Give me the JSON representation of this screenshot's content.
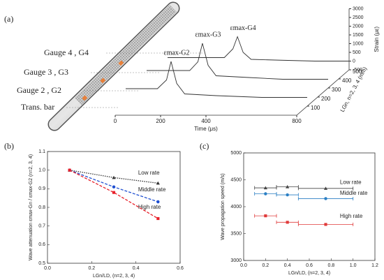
{
  "chart_data": [
    {
      "type": "waterfall3d",
      "panel": "(a)",
      "gauge_labels": [
        "Gauge 4 , G4",
        "Gauge 3 , G3",
        "Gauge 2 , G2",
        "Trans. bar"
      ],
      "x_label": "Time (μs)",
      "y_label": "Strain (με)",
      "z_label": "LGn, n=2, 3, 4 (mm)",
      "xlim": [
        0,
        800
      ],
      "xticks": [
        0,
        200,
        400,
        800
      ],
      "ylim": [
        -500,
        3000
      ],
      "yticks": [
        3000,
        2500,
        2000,
        1500,
        1000,
        500,
        0,
        -500
      ],
      "zlim": [
        0,
        500
      ],
      "zticks": [
        100,
        200,
        300,
        400,
        500
      ],
      "series": [
        {
          "name": "εmax-G2",
          "color": "#333333",
          "depth": 100,
          "x": [
            0,
            60,
            140,
            180,
            200,
            225,
            260,
            400,
            600,
            800
          ],
          "values": [
            500,
            500,
            500,
            1000,
            2060,
            800,
            200,
            100,
            0,
            0
          ]
        },
        {
          "name": "εmax-G3",
          "color": "#333333",
          "depth": 300,
          "x": [
            0,
            60,
            190,
            226,
            246,
            271,
            306,
            450,
            600,
            800
          ],
          "values": [
            500,
            500,
            500,
            1000,
            2060,
            800,
            200,
            100,
            0,
            0
          ]
        },
        {
          "name": "εmax-G4",
          "color": "#333333",
          "depth": 500,
          "x": [
            0,
            60,
            250,
            288,
            308,
            333,
            368,
            500,
            650,
            800
          ],
          "values": [
            200,
            200,
            200,
            700,
            1400,
            500,
            100,
            50,
            0,
            0
          ]
        }
      ]
    },
    {
      "type": "line",
      "panel": "(b)",
      "x_label": "LGn/LD, (n=2, 3, 4)",
      "y_label": "Wave attenuation εmax-Gn / εmax-G2 (n=2, 3, 4)",
      "xlim": [
        0,
        0.6
      ],
      "xticks": [
        {
          "value": 0,
          "label": "0.0"
        },
        0.2,
        0.4,
        0.6
      ],
      "ylim": [
        0.5,
        1.1
      ],
      "yticks": [
        0.5,
        0.6,
        0.7,
        0.8,
        0.9,
        {
          "value": 1,
          "label": "1.0"
        },
        1.1
      ],
      "annotations": [
        {
          "text": "Low rate",
          "x": 0.41,
          "y": 0.985
        },
        {
          "text": "Middle rate",
          "x": 0.41,
          "y": 0.895
        },
        {
          "text": "High rate",
          "x": 0.41,
          "y": 0.8
        }
      ],
      "series": [
        {
          "name": "Low rate",
          "color": "#333333",
          "marker": "triangle",
          "x": [
            0.1,
            0.3,
            0.5
          ],
          "values": [
            1.0,
            0.96,
            0.93
          ]
        },
        {
          "name": "Middle rate",
          "color": "#1f4fd1",
          "marker": "circle",
          "x": [
            0.1,
            0.3,
            0.5
          ],
          "values": [
            1.0,
            0.91,
            0.83
          ]
        },
        {
          "name": "High rate",
          "color": "#e8202a",
          "marker": "square",
          "x": [
            0.1,
            0.3,
            0.5
          ],
          "values": [
            1.0,
            0.88,
            0.74
          ]
        }
      ]
    },
    {
      "type": "errorbar",
      "panel": "(c)",
      "x_label": "LGn/LD, (n=2, 3, 4)",
      "y_label": "Wave propagation speed (m/s)",
      "xlim": [
        0,
        1.2
      ],
      "xticks": [
        {
          "value": 0,
          "label": "0.0"
        },
        0.2,
        0.4,
        0.6,
        0.8,
        {
          "value": 1,
          "label": "1.0"
        },
        1.2
      ],
      "ylim": [
        3000,
        5000
      ],
      "yticks": [
        3000,
        3500,
        4000,
        4500,
        5000
      ],
      "annotations": [
        {
          "text": "Low rate",
          "x": 0.88,
          "y": 4450
        },
        {
          "text": "Middle rate",
          "x": 0.88,
          "y": 4250
        },
        {
          "text": "High rate",
          "x": 0.88,
          "y": 3820
        }
      ],
      "series": [
        {
          "name": "Low rate",
          "color": "#444444",
          "marker": "triangle",
          "x": [
            0.2,
            0.4,
            0.75
          ],
          "xerr": [
            0.1,
            0.1,
            0.25
          ],
          "values": [
            4350,
            4370,
            4340
          ]
        },
        {
          "name": "Middle rate",
          "color": "#2a7fc4",
          "marker": "circle",
          "x": [
            0.2,
            0.4,
            0.75
          ],
          "xerr": [
            0.1,
            0.1,
            0.25
          ],
          "values": [
            4240,
            4220,
            4150
          ]
        },
        {
          "name": "High rate",
          "color": "#e03a3a",
          "marker": "square",
          "x": [
            0.2,
            0.4,
            0.75
          ],
          "xerr": [
            0.1,
            0.1,
            0.25
          ],
          "values": [
            3830,
            3710,
            3670
          ]
        }
      ]
    }
  ]
}
